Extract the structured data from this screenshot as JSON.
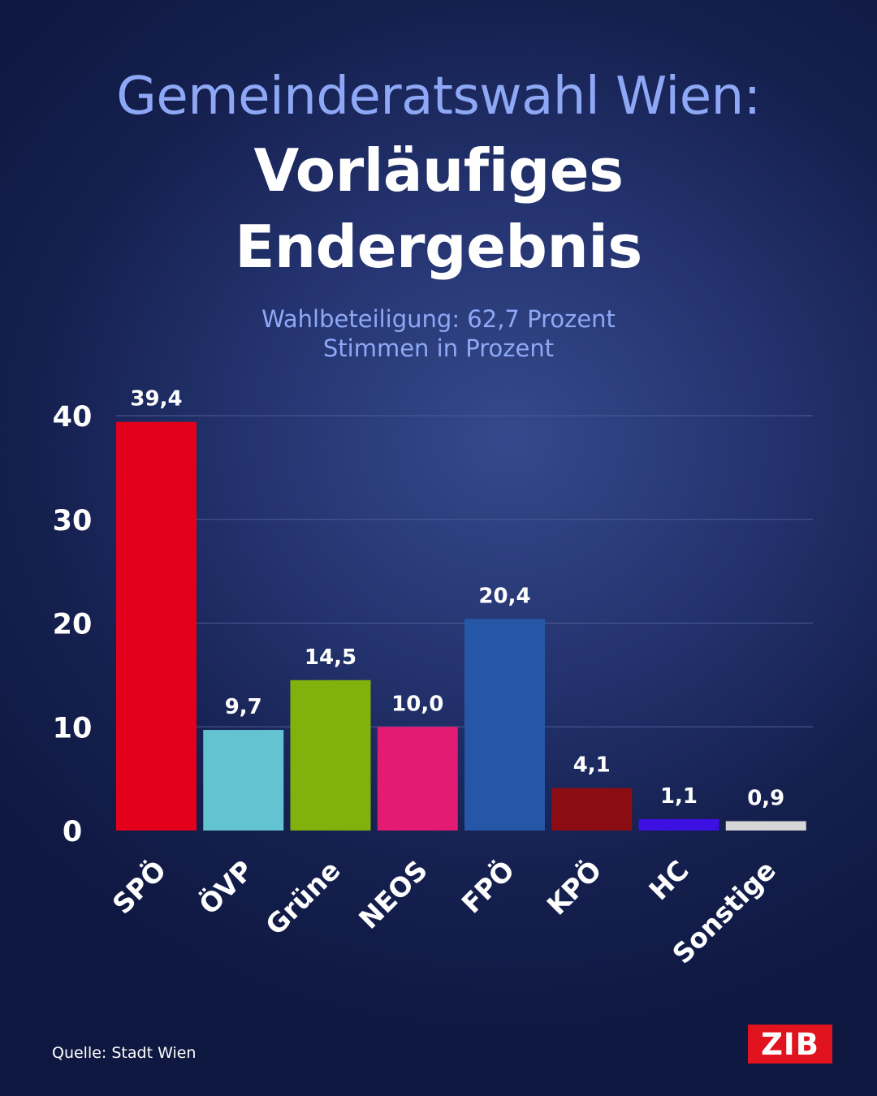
{
  "header": {
    "title_line1": "Gemeinderatswahl Wien:",
    "title_line2": "Vorläufiges",
    "title_line3": "Endergebnis",
    "subtitle_line1": "Wahlbeteiligung: 62,7 Prozent",
    "subtitle_line2": "Stimmen in Prozent"
  },
  "footer": {
    "source": "Quelle: Stadt Wien",
    "logo_text": "ZIB"
  },
  "colors": {
    "background": "#1b2658",
    "title_accent": "#8ea8f6",
    "logo_red": "#e0131f"
  },
  "chart_data": {
    "type": "bar",
    "title": "Gemeinderatswahl Wien: Vorläufiges Endergebnis",
    "ylabel": "Stimmen in Prozent",
    "ylim": [
      0,
      40
    ],
    "yticks": [
      0,
      10,
      20,
      30,
      40
    ],
    "grid": true,
    "categories": [
      "SPÖ",
      "ÖVP",
      "Grüne",
      "NEOS",
      "FPÖ",
      "KPÖ",
      "HC",
      "Sonstige"
    ],
    "values": [
      39.4,
      9.7,
      14.5,
      10.0,
      20.4,
      4.1,
      1.1,
      0.9
    ],
    "value_labels": [
      "39,4",
      "9,7",
      "14,5",
      "10,0",
      "20,4",
      "4,1",
      "1,1",
      "0,9"
    ],
    "bar_colors": [
      "#e2001a",
      "#63c3d1",
      "#80b10d",
      "#e31b73",
      "#2657a6",
      "#8c0c14",
      "#3b10e0",
      "#d6d6d6"
    ]
  }
}
